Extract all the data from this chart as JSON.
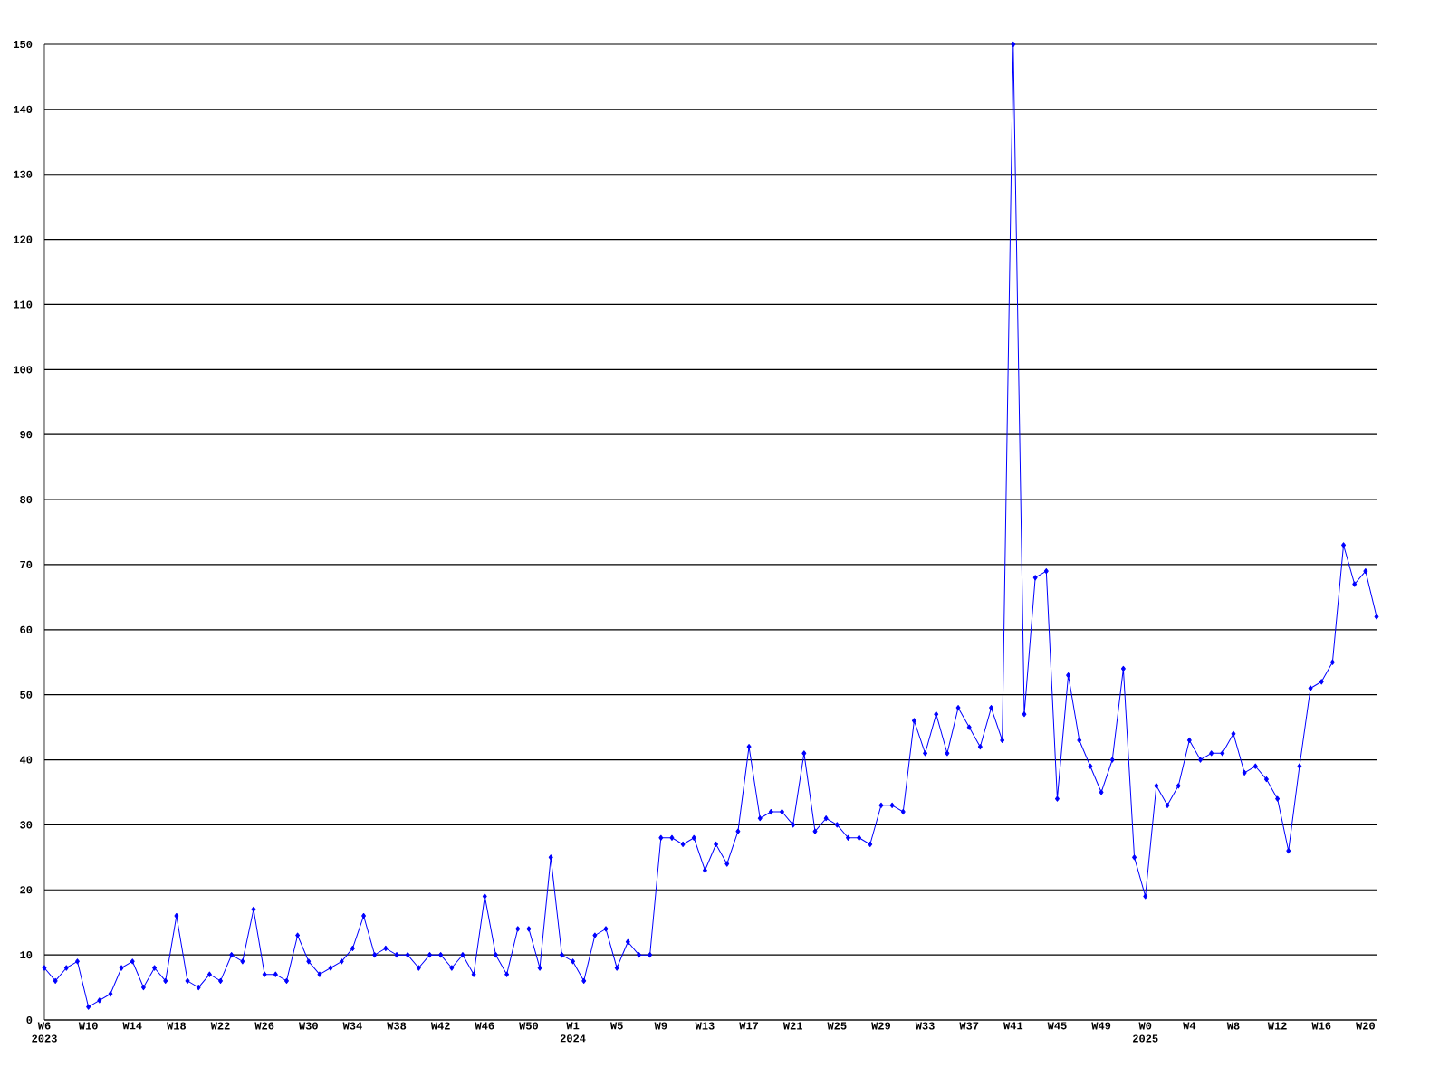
{
  "chart_data": {
    "type": "line",
    "color": "#0000ff",
    "marker": "diamond",
    "grid": "y",
    "ylim": [
      0,
      150
    ],
    "yticks": [
      0,
      10,
      20,
      30,
      40,
      50,
      60,
      70,
      80,
      90,
      100,
      110,
      120,
      130,
      140,
      150
    ],
    "categories": [
      "W6 2023",
      null,
      null,
      null,
      "W10",
      null,
      null,
      null,
      "W14",
      null,
      null,
      null,
      "W18",
      null,
      null,
      null,
      "W22",
      null,
      null,
      null,
      "W26",
      null,
      null,
      null,
      "W30",
      null,
      null,
      null,
      "W34",
      null,
      null,
      null,
      "W38",
      null,
      null,
      null,
      "W42",
      null,
      null,
      null,
      "W46",
      null,
      null,
      null,
      "W50",
      null,
      null,
      null,
      "W1 2024",
      null,
      null,
      null,
      "W5",
      null,
      null,
      null,
      "W9",
      null,
      null,
      null,
      "W13",
      null,
      null,
      null,
      "W17",
      null,
      null,
      null,
      "W21",
      null,
      null,
      null,
      "W25",
      null,
      null,
      null,
      "W29",
      null,
      null,
      null,
      "W33",
      null,
      null,
      null,
      "W37",
      null,
      null,
      null,
      "W41",
      null,
      null,
      null,
      "W45",
      null,
      null,
      null,
      "W49",
      null,
      null,
      null,
      "W0 2025",
      null,
      null,
      null,
      "W4",
      null,
      null,
      null,
      "W8",
      null,
      null,
      null,
      "W12",
      null,
      null,
      null,
      "W16",
      null,
      null,
      null,
      "W20",
      null
    ],
    "values": [
      8,
      6,
      8,
      9,
      2,
      3,
      4,
      8,
      9,
      5,
      8,
      6,
      16,
      6,
      5,
      7,
      6,
      10,
      9,
      17,
      7,
      7,
      6,
      13,
      9,
      7,
      8,
      9,
      11,
      16,
      10,
      11,
      10,
      10,
      8,
      10,
      10,
      8,
      10,
      7,
      19,
      10,
      7,
      14,
      14,
      8,
      25,
      10,
      9,
      6,
      13,
      14,
      8,
      12,
      10,
      10,
      28,
      28,
      27,
      28,
      23,
      27,
      24,
      29,
      42,
      31,
      32,
      32,
      30,
      41,
      29,
      31,
      30,
      28,
      28,
      27,
      33,
      33,
      32,
      46,
      41,
      47,
      41,
      48,
      45,
      42,
      48,
      43,
      150,
      47,
      68,
      69,
      34,
      53,
      43,
      39,
      35,
      40,
      54,
      25,
      19,
      36,
      33,
      36,
      43,
      40,
      41,
      41,
      44,
      38,
      39,
      37,
      34,
      26,
      39,
      51,
      52,
      55,
      73,
      67,
      69,
      62
    ]
  }
}
